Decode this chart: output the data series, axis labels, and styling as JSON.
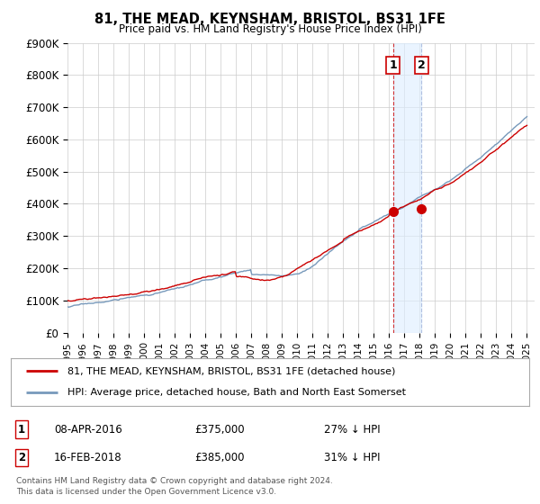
{
  "title": "81, THE MEAD, KEYNSHAM, BRISTOL, BS31 1FE",
  "subtitle": "Price paid vs. HM Land Registry's House Price Index (HPI)",
  "legend_line1": "81, THE MEAD, KEYNSHAM, BRISTOL, BS31 1FE (detached house)",
  "legend_line2": "HPI: Average price, detached house, Bath and North East Somerset",
  "footnote1": "Contains HM Land Registry data © Crown copyright and database right 2024.",
  "footnote2": "This data is licensed under the Open Government Licence v3.0.",
  "transaction1_date": "08-APR-2016",
  "transaction1_price": "£375,000",
  "transaction1_hpi": "27% ↓ HPI",
  "transaction2_date": "16-FEB-2018",
  "transaction2_price": "£385,000",
  "transaction2_hpi": "31% ↓ HPI",
  "price_color": "#cc0000",
  "hpi_color": "#7799bb",
  "hpi_shade_color": "#ddeeff",
  "vline_color": "#cc0000",
  "vline2_color": "#aabbdd",
  "ylim_min": 0,
  "ylim_max": 900000,
  "yticks": [
    0,
    100000,
    200000,
    300000,
    400000,
    500000,
    600000,
    700000,
    800000,
    900000
  ],
  "ytick_labels": [
    "£0",
    "£100K",
    "£200K",
    "£300K",
    "£400K",
    "£500K",
    "£600K",
    "£700K",
    "£800K",
    "£900K"
  ],
  "transaction1_year": 2016.27,
  "transaction1_value": 375000,
  "transaction2_year": 2018.12,
  "transaction2_value": 385000,
  "background_color": "#ffffff",
  "grid_color": "#cccccc",
  "box1_label": "1",
  "box2_label": "2"
}
